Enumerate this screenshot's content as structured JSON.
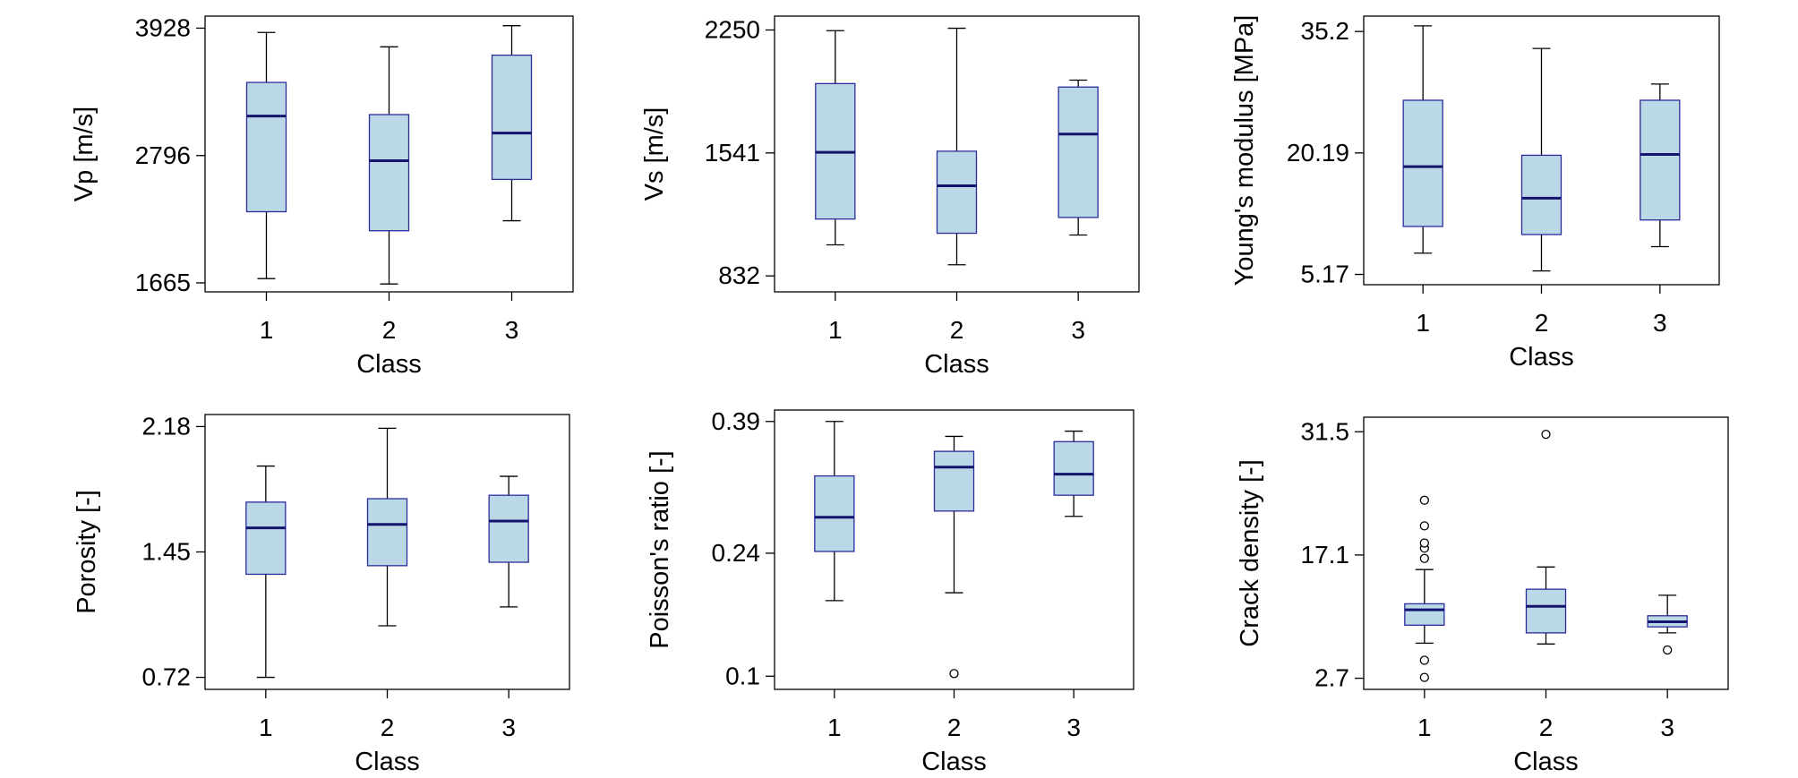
{
  "chart_data": [
    {
      "type": "boxplot",
      "ylabel": "Vp [m/s]",
      "xlabel": "Class",
      "categories": [
        "1",
        "2",
        "3"
      ],
      "yticks": [
        {
          "value": 1665,
          "label": "1665"
        },
        {
          "value": 2796,
          "label": "2796"
        },
        {
          "value": 3928,
          "label": "3928"
        }
      ],
      "ylim": [
        1585,
        4035
      ],
      "boxes": [
        {
          "whisker_low": 1703,
          "q1": 2297,
          "median": 3147,
          "q3": 3446,
          "whisker_high": 3890,
          "outliers": []
        },
        {
          "whisker_low": 1655,
          "q1": 2128,
          "median": 2750,
          "q3": 3160,
          "whisker_high": 3762,
          "outliers": []
        },
        {
          "whisker_low": 2217,
          "q1": 2584,
          "median": 2996,
          "q3": 3688,
          "whisker_high": 3950,
          "outliers": []
        }
      ]
    },
    {
      "type": "boxplot",
      "ylabel": "Vs [m/s]",
      "xlabel": "Class",
      "categories": [
        "1",
        "2",
        "3"
      ],
      "yticks": [
        {
          "value": 832,
          "label": "832"
        },
        {
          "value": 1541,
          "label": "1541"
        },
        {
          "value": 2250,
          "label": "2250"
        }
      ],
      "ylim": [
        740,
        2330
      ],
      "boxes": [
        {
          "whisker_low": 1011,
          "q1": 1160,
          "median": 1545,
          "q3": 1941,
          "whisker_high": 2246,
          "outliers": []
        },
        {
          "whisker_low": 896,
          "q1": 1078,
          "median": 1352,
          "q3": 1551,
          "whisker_high": 2260,
          "outliers": []
        },
        {
          "whisker_low": 1068,
          "q1": 1169,
          "median": 1650,
          "q3": 1921,
          "whisker_high": 1961,
          "outliers": []
        }
      ]
    },
    {
      "type": "boxplot",
      "ylabel": "Young's modulus [MPa]",
      "xlabel": "Class",
      "categories": [
        "1",
        "2",
        "3"
      ],
      "yticks": [
        {
          "value": 5.17,
          "label": "5.17"
        },
        {
          "value": 20.19,
          "label": "20.19"
        },
        {
          "value": 35.2,
          "label": "35.2"
        }
      ],
      "ylim": [
        3.9,
        37.1
      ],
      "boxes": [
        {
          "whisker_low": 7.8,
          "q1": 11.1,
          "median": 18.5,
          "q3": 26.7,
          "whisker_high": 35.9,
          "outliers": []
        },
        {
          "whisker_low": 5.6,
          "q1": 10.1,
          "median": 14.6,
          "q3": 19.9,
          "whisker_high": 33.1,
          "outliers": []
        },
        {
          "whisker_low": 8.6,
          "q1": 11.9,
          "median": 20.0,
          "q3": 26.7,
          "whisker_high": 28.7,
          "outliers": []
        }
      ]
    },
    {
      "type": "boxplot",
      "ylabel": "Porosity [-]",
      "xlabel": "Class",
      "categories": [
        "1",
        "2",
        "3"
      ],
      "yticks": [
        {
          "value": 0.72,
          "label": "0.72"
        },
        {
          "value": 1.45,
          "label": "1.45"
        },
        {
          "value": 2.18,
          "label": "2.18"
        }
      ],
      "ylim": [
        0.65,
        2.25
      ],
      "boxes": [
        {
          "whisker_low": 0.72,
          "q1": 1.32,
          "median": 1.59,
          "q3": 1.74,
          "whisker_high": 1.95,
          "outliers": []
        },
        {
          "whisker_low": 1.02,
          "q1": 1.37,
          "median": 1.61,
          "q3": 1.76,
          "whisker_high": 2.17,
          "outliers": []
        },
        {
          "whisker_low": 1.13,
          "q1": 1.39,
          "median": 1.63,
          "q3": 1.78,
          "whisker_high": 1.89,
          "outliers": []
        }
      ]
    },
    {
      "type": "boxplot",
      "ylabel": "Poisson's ratio [-]",
      "xlabel": "Class",
      "categories": [
        "1",
        "2",
        "3"
      ],
      "yticks": [
        {
          "value": 0.1,
          "label": "0.1"
        },
        {
          "value": 0.24,
          "label": "0.24"
        },
        {
          "value": 0.39,
          "label": "0.39"
        }
      ],
      "ylim": [
        0.085,
        0.403
      ],
      "boxes": [
        {
          "whisker_low": 0.186,
          "q1": 0.242,
          "median": 0.281,
          "q3": 0.328,
          "whisker_high": 0.39,
          "outliers": []
        },
        {
          "whisker_low": 0.195,
          "q1": 0.288,
          "median": 0.338,
          "q3": 0.356,
          "whisker_high": 0.373,
          "outliers": [
            0.103
          ]
        },
        {
          "whisker_low": 0.282,
          "q1": 0.306,
          "median": 0.33,
          "q3": 0.367,
          "whisker_high": 0.379,
          "outliers": []
        }
      ]
    },
    {
      "type": "boxplot",
      "ylabel": "Crack density [-]",
      "xlabel": "Class",
      "categories": [
        "1",
        "2",
        "3"
      ],
      "yticks": [
        {
          "value": 2.7,
          "label": "2.7"
        },
        {
          "value": 17.1,
          "label": "17.1"
        },
        {
          "value": 31.5,
          "label": "31.5"
        }
      ],
      "ylim": [
        1.4,
        33.2
      ],
      "boxes": [
        {
          "whisker_low": 6.8,
          "q1": 8.9,
          "median": 10.7,
          "q3": 11.4,
          "whisker_high": 15.4,
          "outliers": [
            2.8,
            4.8,
            16.7,
            17.9,
            18.5,
            20.5,
            23.5
          ]
        },
        {
          "whisker_low": 6.7,
          "q1": 8.0,
          "median": 11.1,
          "q3": 13.1,
          "whisker_high": 15.7,
          "outliers": [
            31.2
          ]
        },
        {
          "whisker_low": 8.0,
          "q1": 8.7,
          "median": 9.3,
          "q3": 10.0,
          "whisker_high": 12.4,
          "outliers": [
            6.0
          ]
        }
      ]
    }
  ],
  "colors": {
    "box_fill": "#bad8e6",
    "box_edge": "#2c2c9c",
    "median": "#151570",
    "whisker": "#000000",
    "frame": "#000000"
  }
}
